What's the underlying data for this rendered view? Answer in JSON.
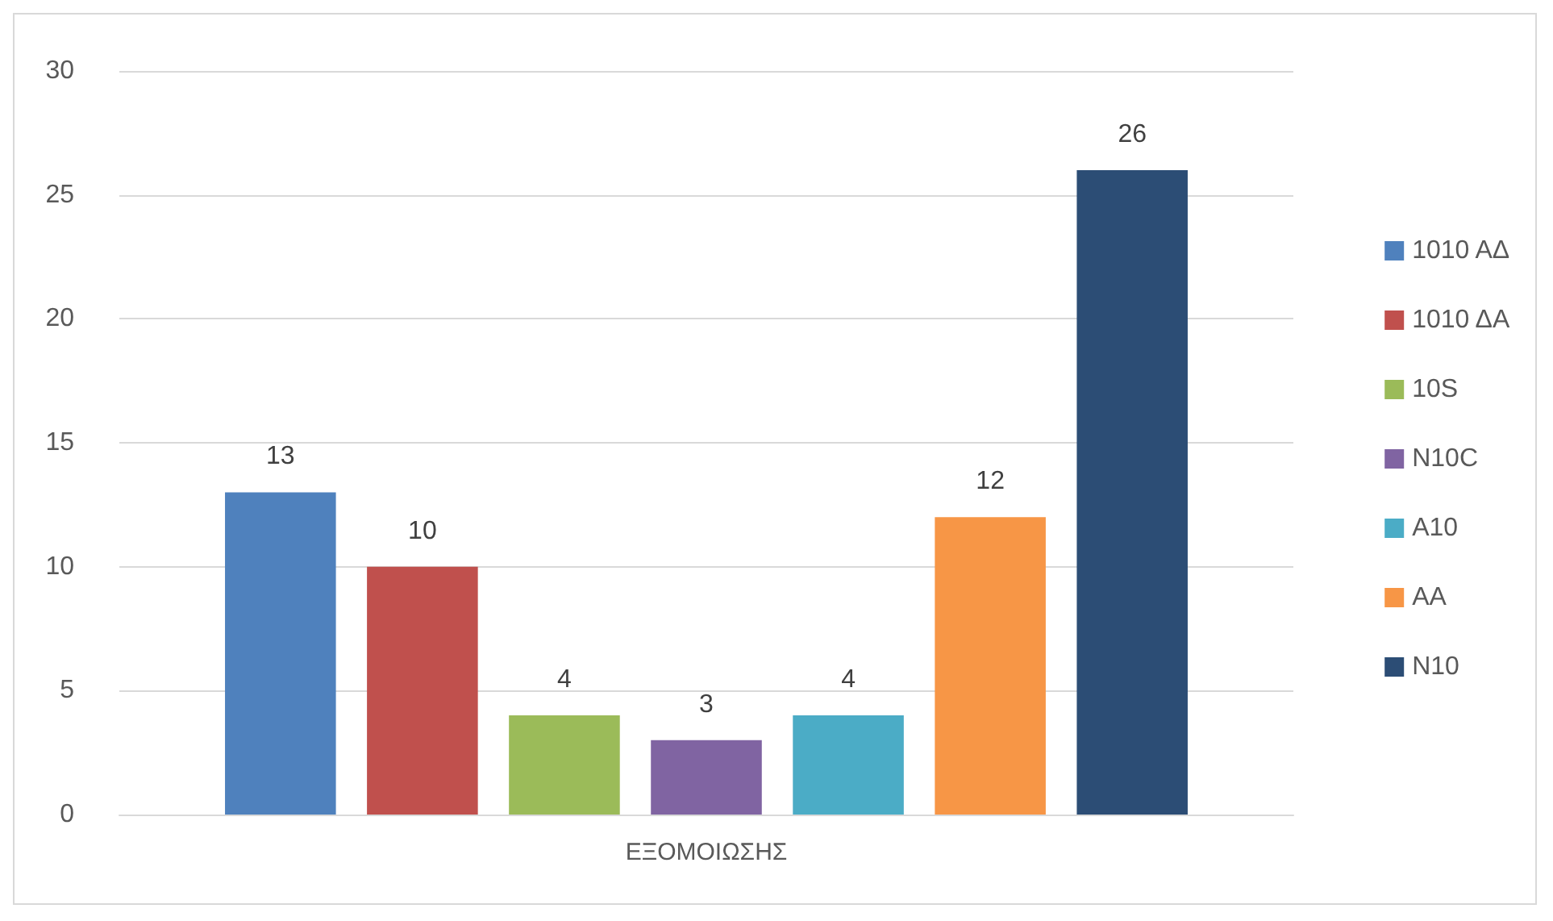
{
  "chart_data": {
    "type": "bar",
    "categories": [
      "ΕΞΟΜΟΙΩΣΗΣ"
    ],
    "series": [
      {
        "name": "1010 ΑΔ",
        "color": "#4f81bd",
        "values": [
          13
        ]
      },
      {
        "name": "1010 ΔΑ",
        "color": "#c0504d",
        "values": [
          10
        ]
      },
      {
        "name": "10S",
        "color": "#9bbb59",
        "values": [
          4
        ]
      },
      {
        "name": "N10C",
        "color": "#8064a2",
        "values": [
          3
        ]
      },
      {
        "name": "A10",
        "color": "#4bacc6",
        "values": [
          4
        ]
      },
      {
        "name": "AA",
        "color": "#f79646",
        "values": [
          12
        ]
      },
      {
        "name": "N10",
        "color": "#2c4d75",
        "values": [
          26
        ]
      }
    ],
    "ylim": [
      0,
      30
    ],
    "yticks": [
      0,
      5,
      10,
      15,
      20,
      25,
      30
    ],
    "grid": "y",
    "legend": "right",
    "data_labels": true
  }
}
